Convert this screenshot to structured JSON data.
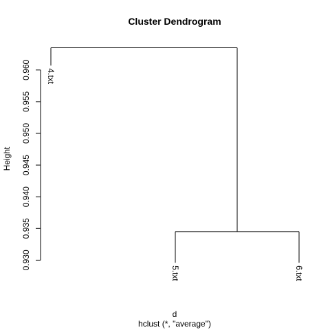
{
  "chart_data": {
    "type": "dendrogram",
    "title": "Cluster Dendrogram",
    "ylabel": "Height",
    "xlabel": "d",
    "subtitle": "hclust (*, \"average\")",
    "ylim": [
      0.93,
      0.9635
    ],
    "yticks": [
      0.93,
      0.935,
      0.94,
      0.945,
      0.95,
      0.955,
      0.96
    ],
    "ytick_labels": [
      "0.930",
      "0.935",
      "0.940",
      "0.945",
      "0.950",
      "0.955",
      "0.960"
    ],
    "leaves": [
      {
        "label": "4.txt",
        "height": 0.9607
      },
      {
        "label": "5.txt",
        "height": 0.9296
      },
      {
        "label": "6.txt",
        "height": 0.9296
      }
    ],
    "merges": [
      {
        "left": "5.txt",
        "right": "6.txt",
        "height": 0.9345
      },
      {
        "left": "4.txt",
        "right": "merge-1",
        "height": 0.9635
      }
    ],
    "color": "#000000"
  }
}
